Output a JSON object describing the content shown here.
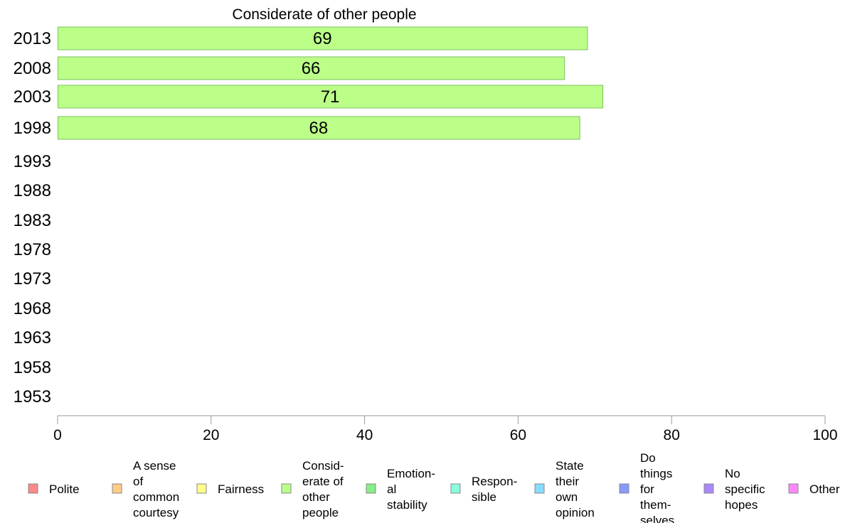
{
  "chart_data": {
    "type": "bar",
    "orientation": "horizontal",
    "title": "Considerate of other people",
    "categories": [
      "2013",
      "2008",
      "2003",
      "1998",
      "1993",
      "1988",
      "1983",
      "1978",
      "1973",
      "1968",
      "1963",
      "1958",
      "1953"
    ],
    "values": [
      69,
      66,
      71,
      68,
      null,
      null,
      null,
      null,
      null,
      null,
      null,
      null,
      null
    ],
    "xlim": [
      0,
      100
    ],
    "xticks": [
      0,
      20,
      40,
      60,
      80,
      100
    ],
    "bar_color": "#bbff88",
    "grid": false,
    "legend_position": "bottom",
    "legend": [
      {
        "lines": [
          "Polite"
        ],
        "color": "#ff8888"
      },
      {
        "lines": [
          "A sense",
          "of",
          "common",
          "courtesy"
        ],
        "color": "#ffcc88"
      },
      {
        "lines": [
          "Fairness"
        ],
        "color": "#ffff88"
      },
      {
        "lines": [
          "Consid-",
          "erate of",
          "other",
          "people"
        ],
        "color": "#bbff88"
      },
      {
        "lines": [
          "Emotion-",
          "al",
          "stability"
        ],
        "color": "#88ee88"
      },
      {
        "lines": [
          "Respon-",
          "sible"
        ],
        "color": "#88ffdd"
      },
      {
        "lines": [
          "State",
          "their",
          "own",
          "opinion"
        ],
        "color": "#88ddff"
      },
      {
        "lines": [
          "Do",
          "things",
          "for",
          "them-",
          "selves"
        ],
        "color": "#8899ff"
      },
      {
        "lines": [
          "No",
          "specific",
          "hopes"
        ],
        "color": "#aa88ff"
      },
      {
        "lines": [
          "Other"
        ],
        "color": "#ff88ff"
      }
    ]
  }
}
